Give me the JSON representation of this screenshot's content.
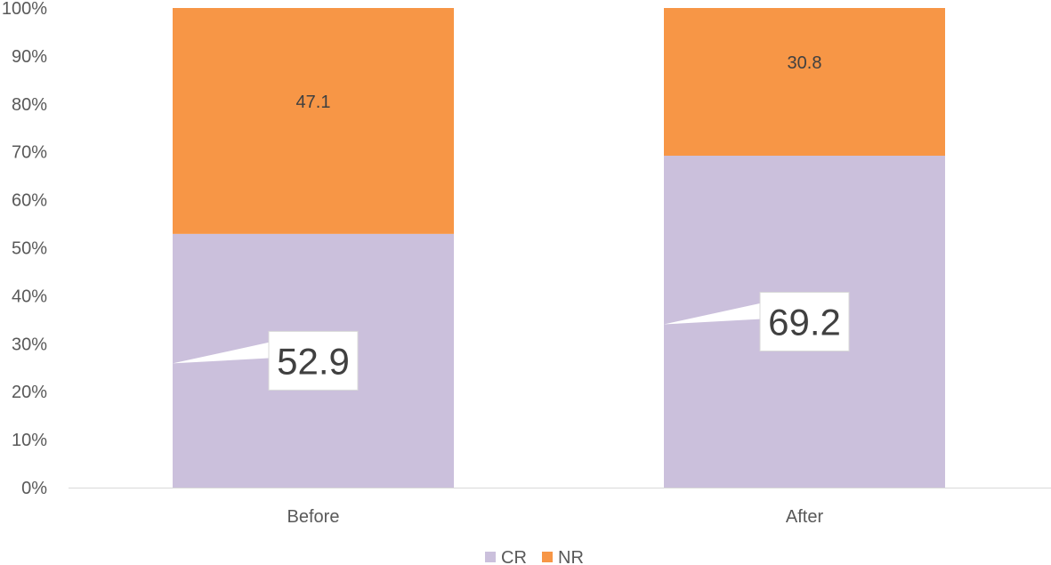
{
  "chart_data": {
    "type": "bar",
    "stacked": true,
    "percent_axis": true,
    "categories": [
      "Before",
      "After"
    ],
    "series": [
      {
        "name": "CR",
        "values": [
          52.9,
          69.2
        ],
        "color": "#CBC0DC",
        "labels": [
          "52.9",
          "69.2"
        ],
        "label_style": "callout"
      },
      {
        "name": "NR",
        "values": [
          47.1,
          30.8
        ],
        "color": "#F79646",
        "labels": [
          "47.1",
          "30.8"
        ],
        "label_style": "inside"
      }
    ],
    "y_ticks": [
      "0%",
      "10%",
      "20%",
      "30%",
      "40%",
      "50%",
      "60%",
      "70%",
      "80%",
      "90%",
      "100%"
    ],
    "ylim": [
      0,
      100
    ],
    "grid": false,
    "legend": {
      "position": "bottom",
      "entries": [
        "CR",
        "NR"
      ]
    },
    "title": "",
    "xlabel": "",
    "ylabel": ""
  }
}
